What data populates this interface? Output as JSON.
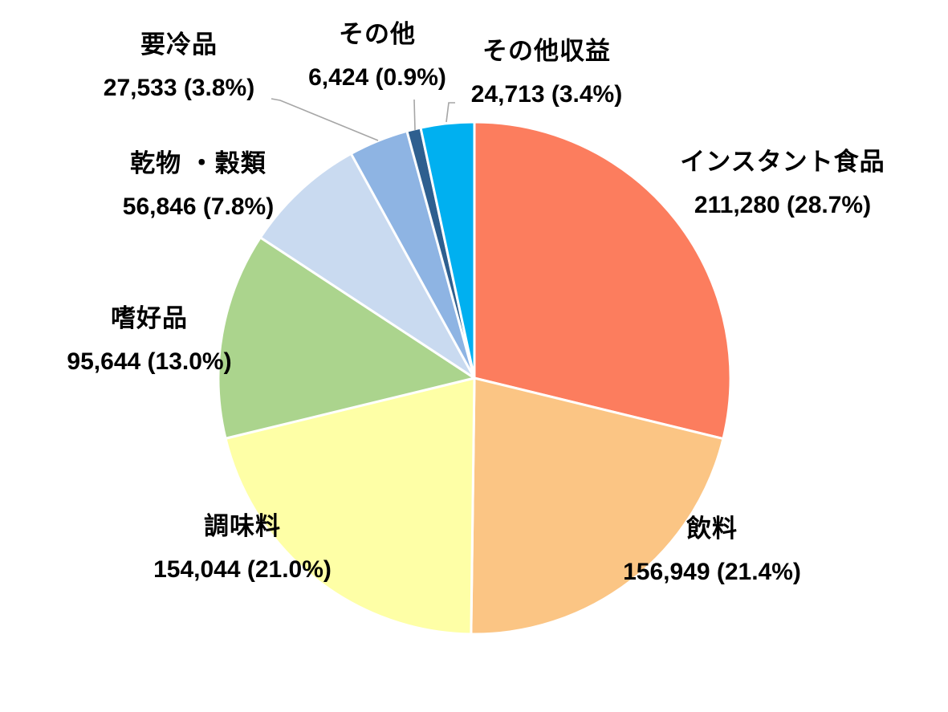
{
  "chart_data": {
    "type": "pie",
    "title": "",
    "legend": "none",
    "labels_position": "outside",
    "start_angle_deg": 0,
    "direction": "clockwise",
    "background_color": "#ffffff",
    "label_text_color": "#000000",
    "leader_line_color": "#a6a6a6",
    "slice_border_color": "#ffffff",
    "total": 733433,
    "slices": [
      {
        "label": "インスタント食品",
        "value": 211280,
        "pct": 28.7,
        "value_label": "211,280 (28.7%)",
        "color": "#FC7D5E"
      },
      {
        "label": "飲料",
        "value": 156949,
        "pct": 21.4,
        "value_label": "156,949 (21.4%)",
        "color": "#FBC584"
      },
      {
        "label": "調味料",
        "value": 154044,
        "pct": 21.0,
        "value_label": "154,044 (21.0%)",
        "color": "#FEFFA6"
      },
      {
        "label": "嗜好品",
        "value": 95644,
        "pct": 13.0,
        "value_label": "95,644 (13.0%)",
        "color": "#ABD48D"
      },
      {
        "label": "乾物 ・穀類",
        "value": 56846,
        "pct": 7.8,
        "value_label": "56,846 (7.8%)",
        "color": "#C9DAF0"
      },
      {
        "label": "要冷品",
        "value": 27533,
        "pct": 3.8,
        "value_label": "27,533 (3.8%)",
        "color": "#8EB4E3"
      },
      {
        "label": "その他",
        "value": 6424,
        "pct": 0.9,
        "value_label": "6,424 (0.9%)",
        "color": "#2E5F8F"
      },
      {
        "label": "その他収益",
        "value": 24713,
        "pct": 3.4,
        "value_label": "24,713 (3.4%)",
        "color": "#00B0F0"
      }
    ]
  }
}
